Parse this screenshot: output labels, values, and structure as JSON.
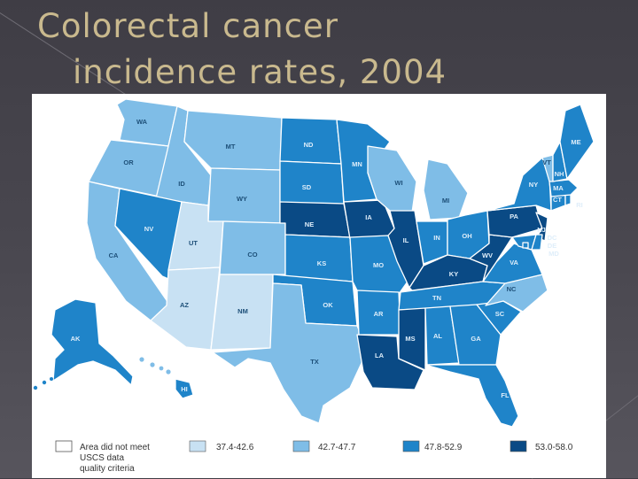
{
  "slide": {
    "title_line1": "Colorectal cancer",
    "title_line2": "incidence rates, 2004"
  },
  "colors": {
    "title": "#c9b98e",
    "class_1": "#c8e1f3",
    "class_2": "#7fbde7",
    "class_3": "#1f84c9",
    "class_4": "#0a4a85",
    "class_none": "#ffffff",
    "border": "#ffffff"
  },
  "legend": [
    {
      "class": "none",
      "label_lines": [
        "Area did not meet",
        "USCS data",
        "quality criteria"
      ]
    },
    {
      "class": "1",
      "label_lines": [
        "37.4-42.6"
      ]
    },
    {
      "class": "2",
      "label_lines": [
        "42.7-47.7"
      ]
    },
    {
      "class": "3",
      "label_lines": [
        "47.8-52.9"
      ]
    },
    {
      "class": "4",
      "label_lines": [
        "53.0-58.0"
      ]
    }
  ],
  "states": [
    {
      "abbr": "WA",
      "rate_class": 2
    },
    {
      "abbr": "OR",
      "rate_class": 2
    },
    {
      "abbr": "CA",
      "rate_class": 2
    },
    {
      "abbr": "ID",
      "rate_class": 2
    },
    {
      "abbr": "NV",
      "rate_class": 3
    },
    {
      "abbr": "MT",
      "rate_class": 2
    },
    {
      "abbr": "WY",
      "rate_class": 2
    },
    {
      "abbr": "UT",
      "rate_class": 1
    },
    {
      "abbr": "CO",
      "rate_class": 2
    },
    {
      "abbr": "AZ",
      "rate_class": 1
    },
    {
      "abbr": "NM",
      "rate_class": 1
    },
    {
      "abbr": "ND",
      "rate_class": 3
    },
    {
      "abbr": "SD",
      "rate_class": 3
    },
    {
      "abbr": "NE",
      "rate_class": 4
    },
    {
      "abbr": "KS",
      "rate_class": 3
    },
    {
      "abbr": "OK",
      "rate_class": 3
    },
    {
      "abbr": "TX",
      "rate_class": 2
    },
    {
      "abbr": "MN",
      "rate_class": 3
    },
    {
      "abbr": "IA",
      "rate_class": 4
    },
    {
      "abbr": "MO",
      "rate_class": 3
    },
    {
      "abbr": "AR",
      "rate_class": 3
    },
    {
      "abbr": "LA",
      "rate_class": 4
    },
    {
      "abbr": "WI",
      "rate_class": 2
    },
    {
      "abbr": "IL",
      "rate_class": 4
    },
    {
      "abbr": "MI",
      "rate_class": 2
    },
    {
      "abbr": "IN",
      "rate_class": 3
    },
    {
      "abbr": "OH",
      "rate_class": 3
    },
    {
      "abbr": "KY",
      "rate_class": 4
    },
    {
      "abbr": "TN",
      "rate_class": 3
    },
    {
      "abbr": "MS",
      "rate_class": 4
    },
    {
      "abbr": "AL",
      "rate_class": 3
    },
    {
      "abbr": "GA",
      "rate_class": 3
    },
    {
      "abbr": "FL",
      "rate_class": 3
    },
    {
      "abbr": "SC",
      "rate_class": 3
    },
    {
      "abbr": "NC",
      "rate_class": 2
    },
    {
      "abbr": "VA",
      "rate_class": 3
    },
    {
      "abbr": "WV",
      "rate_class": 4
    },
    {
      "abbr": "PA",
      "rate_class": 4
    },
    {
      "abbr": "NY",
      "rate_class": 3
    },
    {
      "abbr": "NJ",
      "rate_class": 4
    },
    {
      "abbr": "DE",
      "rate_class": 3
    },
    {
      "abbr": "MD",
      "rate_class": 3
    },
    {
      "abbr": "DC",
      "rate_class": 3
    },
    {
      "abbr": "CT",
      "rate_class": 3
    },
    {
      "abbr": "RI",
      "rate_class": 3
    },
    {
      "abbr": "MA",
      "rate_class": 3
    },
    {
      "abbr": "VT",
      "rate_class": 2
    },
    {
      "abbr": "NH",
      "rate_class": 3
    },
    {
      "abbr": "ME",
      "rate_class": 3
    },
    {
      "abbr": "AK",
      "rate_class": 3
    },
    {
      "abbr": "HI",
      "rate_class": 3
    }
  ]
}
